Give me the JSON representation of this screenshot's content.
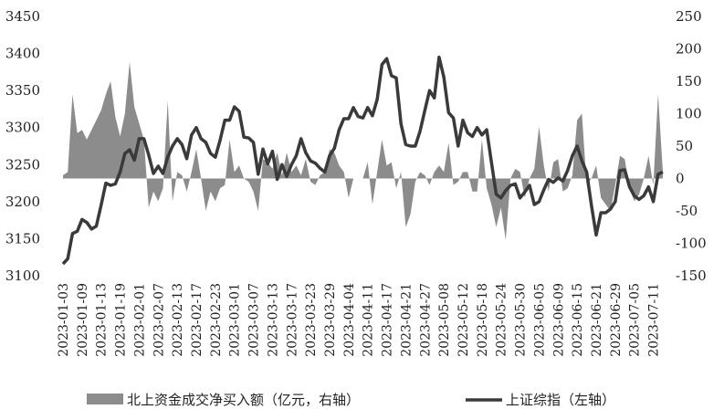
{
  "chart_data": {
    "type": "combo",
    "categories": [
      "2023-01-03",
      null,
      null,
      null,
      "2023-01-09",
      null,
      null,
      null,
      "2023-01-13",
      null,
      null,
      null,
      "2023-01-19",
      null,
      null,
      null,
      "2023-02-01",
      null,
      null,
      null,
      "2023-02-07",
      null,
      null,
      null,
      "2023-02-13",
      null,
      null,
      null,
      "2023-02-17",
      null,
      null,
      null,
      "2023-02-23",
      null,
      null,
      null,
      "2023-03-01",
      null,
      null,
      null,
      "2023-03-07",
      null,
      null,
      null,
      "2023-03-13",
      null,
      null,
      null,
      "2023-03-17",
      null,
      null,
      null,
      "2023-03-23",
      null,
      null,
      null,
      "2023-03-29",
      null,
      null,
      null,
      "2023-04-04",
      null,
      null,
      null,
      "2023-04-11",
      null,
      null,
      null,
      "2023-04-17",
      null,
      null,
      null,
      "2023-04-21",
      null,
      null,
      null,
      "2023-04-27",
      null,
      null,
      null,
      "2023-05-08",
      null,
      null,
      null,
      "2023-05-12",
      null,
      null,
      null,
      "2023-05-18",
      null,
      null,
      null,
      "2023-05-24",
      null,
      null,
      null,
      "2023-05-30",
      null,
      null,
      null,
      "2023-06-05",
      null,
      null,
      null,
      "2023-06-09",
      null,
      null,
      null,
      "2023-06-15",
      null,
      null,
      null,
      "2023-06-21",
      null,
      null,
      null,
      "2023-06-29",
      null,
      null,
      null,
      "2023-07-05",
      null,
      null,
      null,
      "2023-07-11",
      null,
      null
    ],
    "series": [
      {
        "name": "北上资金成交净买入额（亿元，右轴）",
        "type": "area",
        "axis": "y2",
        "color": "#8c8c8c",
        "values": [
          5,
          10,
          130,
          70,
          75,
          60,
          75,
          90,
          105,
          130,
          150,
          95,
          65,
          100,
          180,
          110,
          85,
          60,
          -45,
          -20,
          -35,
          -15,
          120,
          -35,
          10,
          5,
          -20,
          10,
          45,
          0,
          -50,
          -20,
          -35,
          -15,
          -10,
          60,
          10,
          20,
          0,
          -5,
          -20,
          -50,
          30,
          25,
          15,
          40,
          5,
          40,
          10,
          20,
          5,
          30,
          -5,
          -10,
          5,
          10,
          45,
          40,
          20,
          10,
          -30,
          0,
          0,
          0,
          25,
          -40,
          10,
          60,
          20,
          25,
          -15,
          10,
          -75,
          -55,
          -5,
          10,
          5,
          -10,
          10,
          20,
          10,
          55,
          -10,
          -5,
          10,
          10,
          -20,
          -20,
          60,
          -15,
          -40,
          -75,
          -45,
          -95,
          0,
          15,
          10,
          -30,
          0,
          15,
          80,
          20,
          -20,
          25,
          30,
          -20,
          -15,
          5,
          90,
          100,
          -10,
          0,
          20,
          -30,
          -40,
          -50,
          -10,
          35,
          30,
          -15,
          -35,
          -25,
          0,
          35,
          -10,
          130,
          10
        ]
      },
      {
        "name": "上证综指（左轴）",
        "type": "line",
        "color": "#3a3a3a",
        "values": [
          3116,
          3123,
          3157,
          3160,
          3176,
          3172,
          3163,
          3167,
          3195,
          3225,
          3222,
          3224,
          3240,
          3265,
          3270,
          3256,
          3285,
          3285,
          3263,
          3238,
          3248,
          3238,
          3260,
          3275,
          3285,
          3277,
          3258,
          3290,
          3300,
          3285,
          3280,
          3265,
          3260,
          3283,
          3310,
          3310,
          3328,
          3322,
          3287,
          3286,
          3280,
          3237,
          3271,
          3251,
          3268,
          3230,
          3250,
          3234,
          3250,
          3262,
          3285,
          3266,
          3255,
          3252,
          3245,
          3240,
          3262,
          3272,
          3297,
          3312,
          3312,
          3327,
          3315,
          3313,
          3327,
          3316,
          3338,
          3385,
          3393,
          3370,
          3367,
          3305,
          3277,
          3275,
          3275,
          3295,
          3323,
          3350,
          3340,
          3395,
          3368,
          3320,
          3313,
          3275,
          3310,
          3293,
          3288,
          3300,
          3290,
          3297,
          3253,
          3210,
          3205,
          3215,
          3222,
          3224,
          3205,
          3213,
          3222,
          3196,
          3200,
          3216,
          3230,
          3226,
          3232,
          3228,
          3242,
          3262,
          3275,
          3255,
          3240,
          3195,
          3155,
          3185,
          3185,
          3190,
          3200,
          3242,
          3243,
          3220,
          3208,
          3203,
          3208,
          3220,
          3200,
          3237,
          3240
        ]
      }
    ],
    "ylim": [
      3100,
      3450
    ],
    "yticks": [
      3100,
      3150,
      3200,
      3250,
      3300,
      3350,
      3400,
      3450
    ],
    "y2lim": [
      -150,
      250
    ],
    "y2ticks": [
      -150,
      -100,
      -50,
      0,
      50,
      100,
      150,
      200,
      250
    ],
    "legend": "bottom"
  }
}
